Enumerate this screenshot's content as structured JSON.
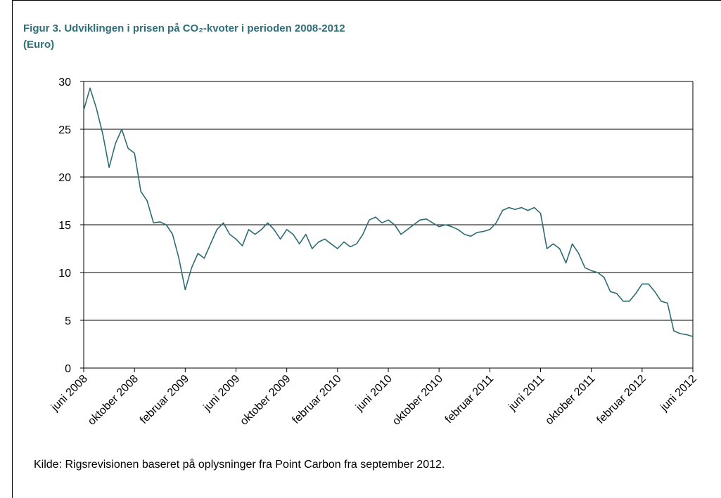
{
  "chart_data": {
    "type": "line",
    "title": "Figur 3. Udviklingen i prisen på CO₂-kvoter i perioden 2008-2012",
    "subtitle": "(Euro)",
    "note": "Kilde:  Rigsrevisionen baseret på oplysninger fra Point Carbon fra september 2012.",
    "color": "#2e6b73",
    "grid": true,
    "ylim": [
      0,
      30
    ],
    "yticks": [
      0,
      5,
      10,
      15,
      20,
      25,
      30
    ],
    "categories": [
      "juni 2008",
      null,
      null,
      null,
      null,
      null,
      null,
      null,
      "oktober 2008",
      null,
      null,
      null,
      null,
      null,
      null,
      null,
      "februar 2009",
      null,
      null,
      null,
      null,
      null,
      null,
      null,
      "juni 2009",
      null,
      null,
      null,
      null,
      null,
      null,
      null,
      "oktober 2009",
      null,
      null,
      null,
      null,
      null,
      null,
      null,
      "februar 2010",
      null,
      null,
      null,
      null,
      null,
      null,
      null,
      "juni 2010",
      null,
      null,
      null,
      null,
      null,
      null,
      null,
      "oktober 2010",
      null,
      null,
      null,
      null,
      null,
      null,
      null,
      "februar 2011",
      null,
      null,
      null,
      null,
      null,
      null,
      null,
      "juni 2011",
      null,
      null,
      null,
      null,
      null,
      null,
      null,
      "oktober 2011",
      null,
      null,
      null,
      null,
      null,
      null,
      null,
      "februar 2012",
      null,
      null,
      null,
      null,
      null,
      null,
      null,
      "juni 2012"
    ],
    "values": [
      27,
      29.3,
      27.2,
      24.5,
      21.0,
      23.5,
      25.0,
      23.0,
      22.5,
      18.5,
      17.5,
      15.2,
      15.3,
      15.0,
      14.0,
      11.5,
      8.2,
      10.5,
      12.0,
      11.5,
      13.0,
      14.5,
      15.2,
      14.0,
      13.5,
      12.8,
      14.5,
      14.0,
      14.5,
      15.2,
      14.5,
      13.5,
      14.5,
      14.0,
      13.0,
      14.0,
      12.5,
      13.2,
      13.5,
      13.0,
      12.5,
      13.2,
      12.7,
      13.0,
      14.0,
      15.5,
      15.8,
      15.2,
      15.5,
      15.0,
      14.0,
      14.5,
      15.0,
      15.5,
      15.6,
      15.2,
      14.8,
      15.0,
      14.8,
      14.5,
      14.0,
      13.8,
      14.2,
      14.3,
      14.5,
      15.2,
      16.5,
      16.8,
      16.6,
      16.8,
      16.5,
      16.8,
      16.2,
      12.5,
      13.0,
      12.5,
      11.0,
      13.0,
      12.0,
      10.5,
      10.2,
      10.0,
      9.5,
      8.0,
      7.8,
      7.0,
      7.0,
      7.8,
      8.8,
      8.8,
      8.0,
      7.0,
      6.8,
      3.9,
      3.6,
      3.5,
      3.3
    ]
  }
}
